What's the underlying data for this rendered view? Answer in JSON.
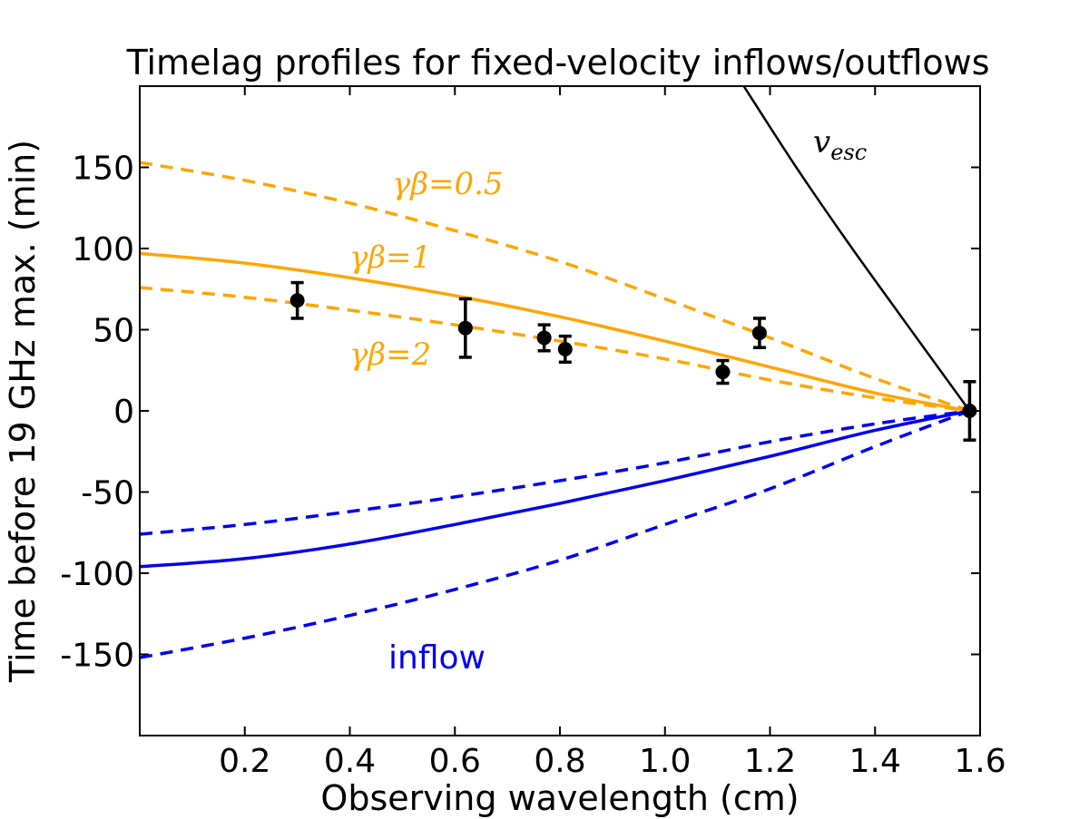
{
  "chart_data": {
    "type": "line",
    "title": "Timelag profiles for fixed-velocity inflows/outflows",
    "xlabel": "Observing wavelength (cm)",
    "ylabel": "Time before 19 GHz max. (min)",
    "xlim": [
      0.0,
      1.6
    ],
    "ylim": [
      -200,
      200
    ],
    "x_ticks": [
      0.2,
      0.4,
      0.6,
      0.8,
      1.0,
      1.2,
      1.4,
      1.6
    ],
    "x_tick_labels": [
      "0.2",
      "0.4",
      "0.6",
      "0.8",
      "1.0",
      "1.2",
      "1.4",
      "1.6"
    ],
    "y_ticks": [
      150,
      100,
      50,
      0,
      -50,
      -100,
      -150
    ],
    "y_tick_labels": [
      "150",
      "100",
      "50",
      "0",
      "-50",
      "-100",
      "-150"
    ],
    "grid": false,
    "colors": {
      "outflow": "#FFA500",
      "inflow": "#0000EE",
      "escape": "#000000",
      "points": "#000000"
    },
    "series": [
      {
        "name": "γβ=0.5 outflow",
        "kind": "dashed",
        "color": "#FFA500",
        "x": [
          0.0,
          0.2,
          0.4,
          0.6,
          0.8,
          1.0,
          1.2,
          1.4,
          1.58
        ],
        "y": [
          153,
          142,
          128,
          111,
          92,
          69,
          45,
          20,
          0
        ]
      },
      {
        "name": "γβ=1 outflow",
        "kind": "solid",
        "color": "#FFA500",
        "x": [
          0.0,
          0.2,
          0.4,
          0.6,
          0.8,
          1.0,
          1.2,
          1.4,
          1.58
        ],
        "y": [
          97,
          91,
          82,
          71,
          58,
          43,
          27,
          11,
          0
        ]
      },
      {
        "name": "γβ=2 outflow",
        "kind": "dashed",
        "color": "#FFA500",
        "x": [
          0.0,
          0.2,
          0.4,
          0.6,
          0.8,
          1.0,
          1.2,
          1.4,
          1.58
        ],
        "y": [
          76,
          70,
          62,
          53,
          43,
          32,
          19,
          8,
          0
        ]
      },
      {
        "name": "inflow (γβ=2)",
        "kind": "dashed",
        "color": "#0000EE",
        "x": [
          0.0,
          0.2,
          0.4,
          0.6,
          0.8,
          1.0,
          1.2,
          1.4,
          1.58
        ],
        "y": [
          -76,
          -70,
          -62,
          -53,
          -43,
          -32,
          -19,
          -8,
          0
        ]
      },
      {
        "name": "inflow (γβ=1)",
        "kind": "solid",
        "color": "#0000EE",
        "x": [
          0.0,
          0.2,
          0.4,
          0.6,
          0.8,
          1.0,
          1.2,
          1.4,
          1.58
        ],
        "y": [
          -96,
          -91,
          -82,
          -70,
          -57,
          -43,
          -28,
          -12,
          0
        ]
      },
      {
        "name": "inflow (γβ=0.5)",
        "kind": "dashed",
        "color": "#0000EE",
        "x": [
          0.0,
          0.2,
          0.4,
          0.6,
          0.8,
          1.0,
          1.2,
          1.4,
          1.58
        ],
        "y": [
          -152,
          -140,
          -126,
          -110,
          -92,
          -70,
          -48,
          -22,
          0
        ]
      },
      {
        "name": "v_esc",
        "kind": "solid",
        "color": "#000000",
        "x": [
          1.15,
          1.25,
          1.35,
          1.45,
          1.58
        ],
        "y": [
          200,
          150,
          103,
          58,
          0
        ]
      }
    ],
    "points": {
      "name": "measured timelags",
      "color": "#000000",
      "x": [
        0.3,
        0.62,
        0.77,
        0.81,
        1.11,
        1.18,
        1.58
      ],
      "y": [
        68,
        51,
        45,
        38,
        24,
        48,
        0
      ],
      "err": [
        11,
        18,
        8,
        8,
        7,
        9,
        18
      ]
    },
    "annotations": [
      {
        "id": "gb05",
        "text": "γβ=0.5",
        "color": "#FFA500"
      },
      {
        "id": "gb1",
        "text": "γβ=1",
        "color": "#FFA500"
      },
      {
        "id": "gb2",
        "text": "γβ=2",
        "color": "#FFA500"
      },
      {
        "id": "vesc",
        "text": "v",
        "sub": "esc",
        "color": "#000000"
      },
      {
        "id": "inflow",
        "text": "inflow",
        "color": "#0000EE"
      }
    ]
  }
}
